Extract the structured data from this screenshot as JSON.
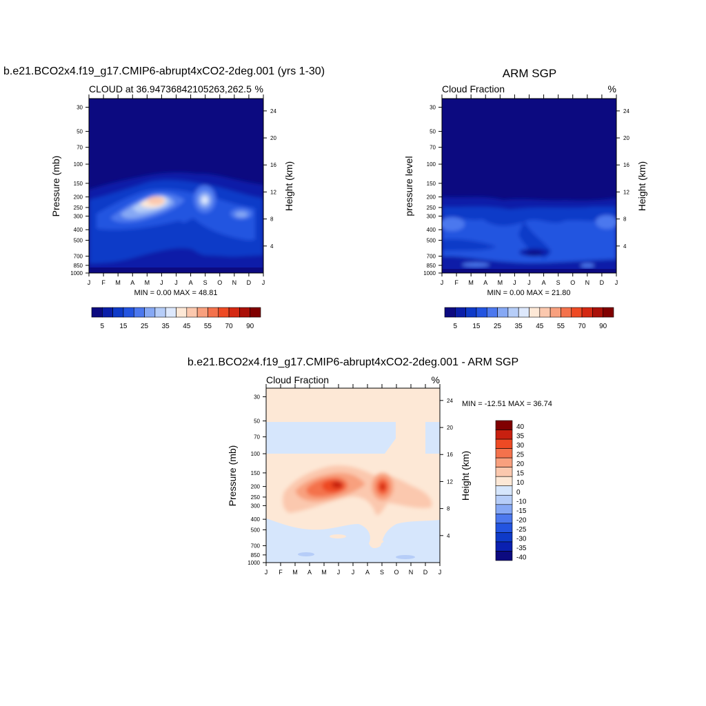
{
  "page_title_left": "b.e21.BCO2x4.f19_g17.CMIP6-abrupt4xCO2-2deg.001 (yrs 1-30)",
  "page_title_right": "ARM SGP",
  "page_title_bottom": "b.e21.BCO2x4.f19_g17.CMIP6-abrupt4xCO2-2deg.001 - ARM SGP",
  "months": [
    "J",
    "F",
    "M",
    "A",
    "M",
    "J",
    "J",
    "A",
    "S",
    "O",
    "N",
    "D",
    "J"
  ],
  "colors": {
    "seq_levels": [
      "#0c0a80",
      "#0a1ea8",
      "#0e3ac8",
      "#2354e0",
      "#4c78ee",
      "#86a8f4",
      "#b6cdf8",
      "#dde8fc",
      "#fde8d6",
      "#fbc8ae",
      "#f8a07e",
      "#f4724c",
      "#ee4a24",
      "#d42812",
      "#aa1008",
      "#800000"
    ],
    "diff_levels": [
      "#0c0a80",
      "#0a20b0",
      "#0e3ac8",
      "#2354e0",
      "#4c78ee",
      "#86a8f4",
      "#b6cdf8",
      "#d6e6fc",
      "#fde8d6",
      "#fbc8ae",
      "#f8a07e",
      "#f4724c",
      "#ee4a24",
      "#c82010",
      "#800000"
    ]
  },
  "chart_data": [
    {
      "type": "contour",
      "title": "b.e21.BCO2x4.f19_g17.CMIP6-abrupt4xCO2-2deg.001 (yrs 1-30)",
      "left_string": "CLOUD at 36.94736842105263,262.5",
      "right_string": "%",
      "xlabel": "",
      "ylabel": "Pressure (mb)",
      "ylabel_right": "Height (km)",
      "x_ticks": [
        "J",
        "F",
        "M",
        "A",
        "M",
        "J",
        "J",
        "A",
        "S",
        "O",
        "N",
        "D",
        "J"
      ],
      "pressure_ticks": [
        "30",
        "50",
        "70",
        "100",
        "150",
        "200",
        "250",
        "300",
        "400",
        "500",
        "700",
        "850",
        "1000"
      ],
      "height_ticks": [
        "24",
        "20",
        "16",
        "12",
        "8",
        "4"
      ],
      "min_max": "MIN =   0.00 MAX =  48.81",
      "colorbar_labels": [
        "5",
        "15",
        "25",
        "35",
        "45",
        "55",
        "70",
        "90"
      ],
      "features": [
        {
          "month": 4.7,
          "pressure": 215,
          "value": 48.8
        },
        {
          "month": 8.0,
          "pressure": 210,
          "value": 36
        }
      ]
    },
    {
      "type": "contour",
      "title": "ARM SGP",
      "left_string": "Cloud Fraction",
      "right_string": "%",
      "xlabel": "",
      "ylabel": "pressure level",
      "ylabel_right": "Height (km)",
      "x_ticks": [
        "J",
        "F",
        "M",
        "A",
        "M",
        "J",
        "J",
        "A",
        "S",
        "O",
        "N",
        "D",
        "J"
      ],
      "pressure_ticks": [
        "30",
        "50",
        "70",
        "100",
        "150",
        "200",
        "250",
        "300",
        "400",
        "500",
        "700",
        "850",
        "1000"
      ],
      "height_ticks": [
        "24",
        "20",
        "16",
        "12",
        "8",
        "4"
      ],
      "min_max": "MIN =   0.00 MAX =  21.80",
      "colorbar_labels": [
        "5",
        "15",
        "25",
        "35",
        "45",
        "55",
        "70",
        "90"
      ]
    },
    {
      "type": "contour",
      "title": "b.e21.BCO2x4.f19_g17.CMIP6-abrupt4xCO2-2deg.001 - ARM SGP",
      "left_string": "Cloud Fraction",
      "right_string": "%",
      "xlabel": "",
      "ylabel": "Pressure (mb)",
      "ylabel_right": "Height (km)",
      "x_ticks": [
        "J",
        "F",
        "M",
        "A",
        "M",
        "J",
        "J",
        "A",
        "S",
        "O",
        "N",
        "D",
        "J"
      ],
      "pressure_ticks": [
        "30",
        "50",
        "70",
        "100",
        "150",
        "200",
        "250",
        "300",
        "400",
        "500",
        "700",
        "850",
        "1000"
      ],
      "height_ticks": [
        "24",
        "20",
        "16",
        "12",
        "8",
        "4"
      ],
      "min_max": "MIN = -12.51 MAX =  36.74",
      "colorbar_labels": [
        "40",
        "35",
        "30",
        "25",
        "20",
        "15",
        "10",
        "0",
        "-10",
        "-15",
        "-20",
        "-25",
        "-30",
        "-35",
        "-40"
      ],
      "features": [
        {
          "month": 4.8,
          "pressure": 200,
          "value": 36.7
        },
        {
          "month": 8.0,
          "pressure": 205,
          "value": 30
        }
      ]
    }
  ]
}
